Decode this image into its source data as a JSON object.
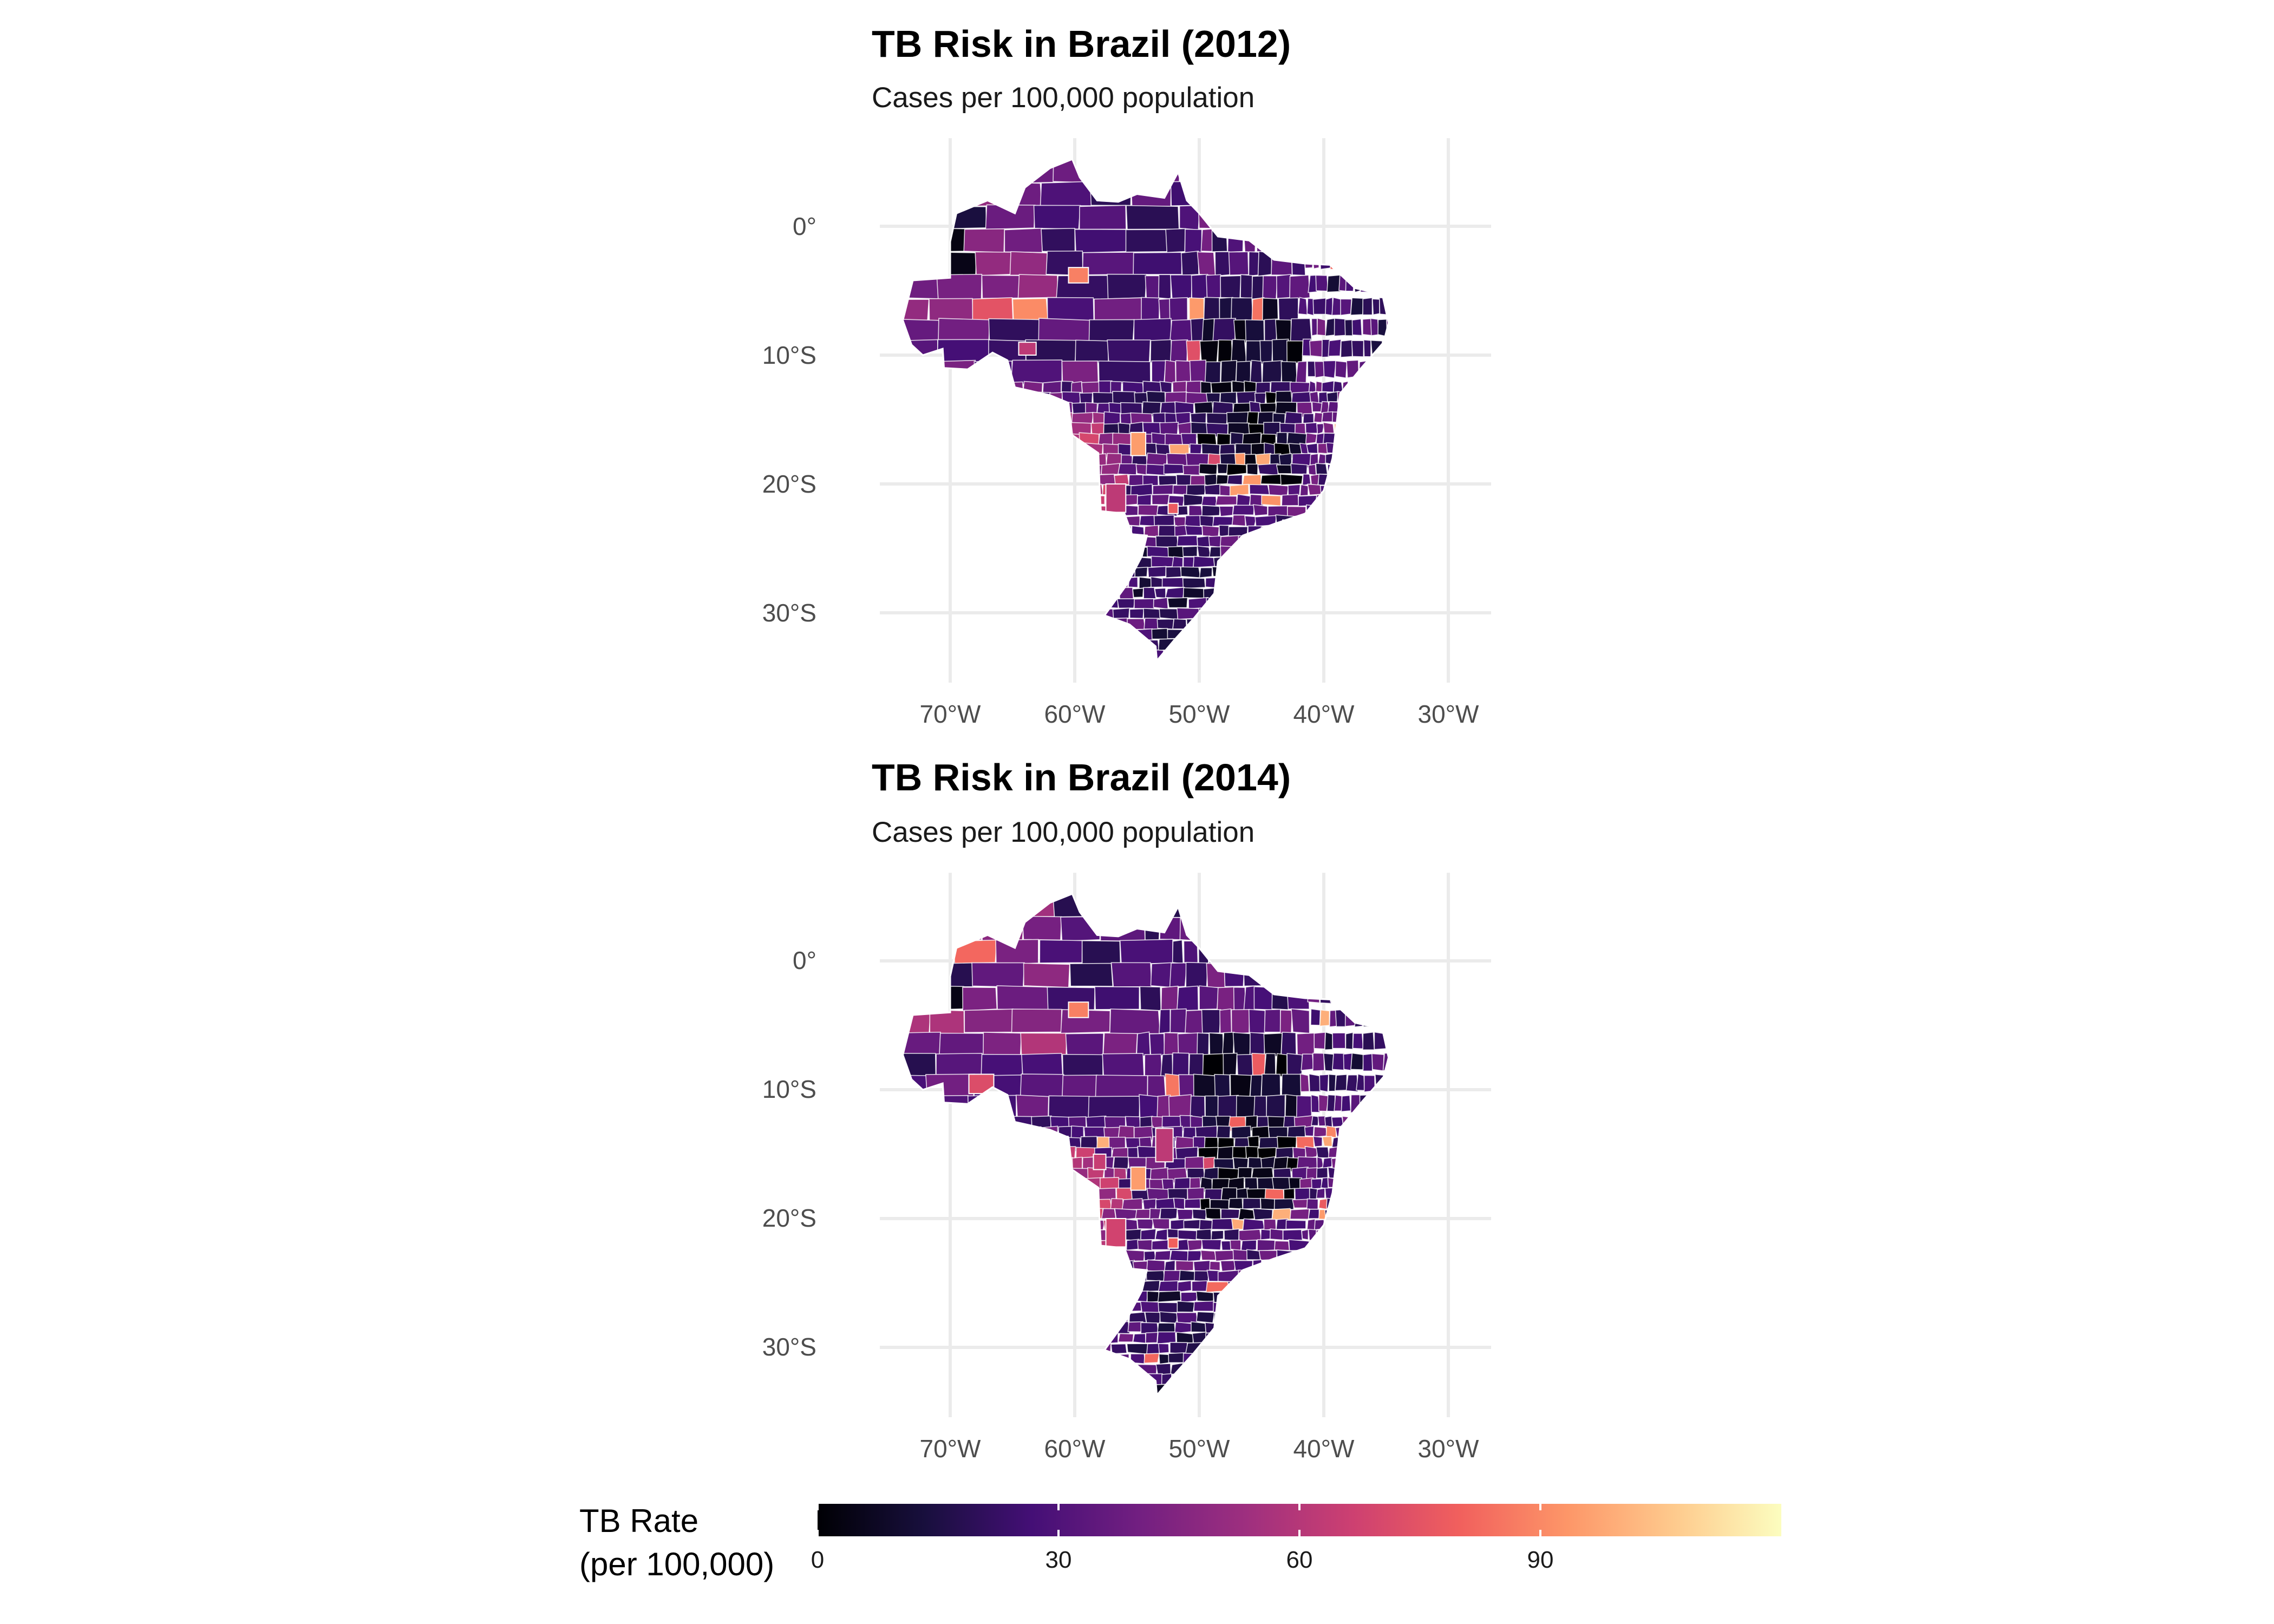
{
  "panels": [
    {
      "title": "TB Risk in Brazil (2012)",
      "subtitle": "Cases per 100,000 population",
      "y_ticks": [
        "0°",
        "10°S",
        "20°S",
        "30°S"
      ],
      "x_ticks": [
        "70°W",
        "60°W",
        "50°W",
        "40°W",
        "30°W"
      ]
    },
    {
      "title": "TB Risk in Brazil (2014)",
      "subtitle": "Cases per 100,000 population",
      "y_ticks": [
        "0°",
        "10°S",
        "20°S",
        "30°S"
      ],
      "x_ticks": [
        "70°W",
        "60°W",
        "50°W",
        "40°W",
        "30°W"
      ]
    }
  ],
  "legend": {
    "title_line1": "TB Rate",
    "title_line2": "(per 100,000)",
    "ticks": [
      "0",
      "30",
      "60",
      "90"
    ],
    "tick_values": [
      0,
      30,
      60,
      90
    ],
    "range": [
      0,
      120
    ],
    "palette": [
      "#000004",
      "#180f3d",
      "#440f76",
      "#721f81",
      "#9e2f7f",
      "#cd4071",
      "#f1605d",
      "#fd9668",
      "#feca8d",
      "#fcfdbf"
    ]
  },
  "chart_data": [
    {
      "type": "choropleth",
      "title": "TB Risk in Brazil (2012)",
      "subtitle": "Cases per 100,000 population",
      "lon_range": [
        -75,
        -27
      ],
      "lat_range": [
        -35,
        6
      ],
      "x_ticks": [
        -70,
        -60,
        -50,
        -40,
        -30
      ],
      "y_ticks": [
        0,
        -10,
        -20,
        -30
      ],
      "fill_variable": "TB Rate (per 100,000)",
      "fill_scale": "magma",
      "fill_limits": [
        0,
        120
      ],
      "grid": true
    },
    {
      "type": "choropleth",
      "title": "TB Risk in Brazil (2014)",
      "subtitle": "Cases per 100,000 population",
      "lon_range": [
        -75,
        -27
      ],
      "lat_range": [
        -35,
        6
      ],
      "x_ticks": [
        -70,
        -60,
        -50,
        -40,
        -30
      ],
      "y_ticks": [
        0,
        -10,
        -20,
        -30
      ],
      "fill_variable": "TB Rate (per 100,000)",
      "fill_scale": "magma",
      "fill_limits": [
        0,
        120
      ],
      "grid": true
    }
  ]
}
